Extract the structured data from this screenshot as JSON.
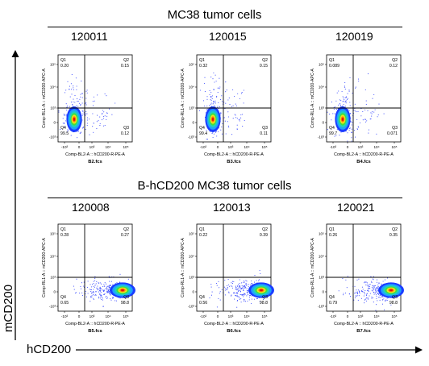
{
  "top_group": {
    "title": "MC38 tumor cells",
    "ids": [
      "120011",
      "120015",
      "120019"
    ]
  },
  "bottom_group": {
    "title": "B-hCD200 MC38 tumor cells",
    "ids": [
      "120008",
      "120013",
      "120021"
    ]
  },
  "x_axis_label": "hCD200",
  "y_axis_label": "mCD200",
  "chart_data": [
    {
      "type": "scatter",
      "title": "120011",
      "file": "B2.fcs",
      "xlabel": "Comp-BL2-A :: hCD200-R-PE-A",
      "ylabel": "Comp-RL1-A :: mCD200-APC-A",
      "xticks": [
        "-10³",
        "0",
        "10³",
        "10⁴",
        "10⁵"
      ],
      "yticks": [
        "-10³",
        "0",
        "10³",
        "10⁴",
        "10⁵"
      ],
      "quadrants": [
        {
          "name": "Q1",
          "percent": "0.20"
        },
        {
          "name": "Q2",
          "percent": "0.15"
        },
        {
          "name": "Q3",
          "percent": "0.12"
        },
        {
          "name": "Q4",
          "percent": "99.5"
        }
      ],
      "population": "Q4"
    },
    {
      "type": "scatter",
      "title": "120015",
      "file": "B3.fcs",
      "xlabel": "Comp-BL2-A :: hCD200-R-PE-A",
      "ylabel": "Comp-RL1-A :: mCD200-APC-A",
      "xticks": [
        "-10³",
        "0",
        "10³",
        "10⁴",
        "10⁵"
      ],
      "yticks": [
        "-10³",
        "0",
        "10³",
        "10⁴",
        "10⁵"
      ],
      "quadrants": [
        {
          "name": "Q1",
          "percent": "0.32"
        },
        {
          "name": "Q2",
          "percent": "0.15"
        },
        {
          "name": "Q3",
          "percent": "0.11"
        },
        {
          "name": "Q4",
          "percent": "99.4"
        }
      ],
      "population": "Q4"
    },
    {
      "type": "scatter",
      "title": "120019",
      "file": "B4.fcs",
      "xlabel": "Comp-BL2-A :: hCD200-R-PE-A",
      "ylabel": "Comp-RL1-A :: mCD200-APC-A",
      "xticks": [
        "-10³",
        "0",
        "10³",
        "10⁴",
        "10⁵"
      ],
      "yticks": [
        "-10³",
        "0",
        "10³",
        "10⁴",
        "10⁵"
      ],
      "quadrants": [
        {
          "name": "Q1",
          "percent": "0.089"
        },
        {
          "name": "Q2",
          "percent": "0.12"
        },
        {
          "name": "Q3",
          "percent": "0.071"
        },
        {
          "name": "Q4",
          "percent": "99.7"
        }
      ],
      "population": "Q4"
    },
    {
      "type": "scatter",
      "title": "120008",
      "file": "B5.fcs",
      "xlabel": "Comp-BL2-A :: hCD200-R-PE-A",
      "ylabel": "Comp-RL1-A :: mCD200-APC-A",
      "xticks": [
        "-10³",
        "0",
        "10³",
        "10⁴",
        "10⁵"
      ],
      "yticks": [
        "-10³",
        "0",
        "10³",
        "10⁴",
        "10⁵"
      ],
      "quadrants": [
        {
          "name": "Q1",
          "percent": "0.28"
        },
        {
          "name": "Q2",
          "percent": "0.27"
        },
        {
          "name": "Q3",
          "percent": "98.8"
        },
        {
          "name": "Q4",
          "percent": "0.65"
        }
      ],
      "population": "Q3"
    },
    {
      "type": "scatter",
      "title": "120013",
      "file": "B6.fcs",
      "xlabel": "Comp-BL2-A :: hCD200-R-PE-A",
      "ylabel": "Comp-RL1-A :: mCD200-APC-A",
      "xticks": [
        "-10³",
        "0",
        "10³",
        "10⁴",
        "10⁵"
      ],
      "yticks": [
        "-10³",
        "0",
        "10³",
        "10⁴",
        "10⁵"
      ],
      "quadrants": [
        {
          "name": "Q1",
          "percent": "0.22"
        },
        {
          "name": "Q2",
          "percent": "0.39"
        },
        {
          "name": "Q3",
          "percent": "98.8"
        },
        {
          "name": "Q4",
          "percent": "0.56"
        }
      ],
      "population": "Q3"
    },
    {
      "type": "scatter",
      "title": "120021",
      "file": "B7.fcs",
      "xlabel": "Comp-BL2-A :: hCD200-R-PE-A",
      "ylabel": "Comp-RL1-A :: mCD200-APC-A",
      "xticks": [
        "-10³",
        "0",
        "10³",
        "10⁴",
        "10⁵"
      ],
      "yticks": [
        "-10³",
        "0",
        "10³",
        "10⁴",
        "10⁵"
      ],
      "quadrants": [
        {
          "name": "Q1",
          "percent": "0.26"
        },
        {
          "name": "Q2",
          "percent": "0.35"
        },
        {
          "name": "Q3",
          "percent": "98.8"
        },
        {
          "name": "Q4",
          "percent": "0.79"
        }
      ],
      "population": "Q3"
    }
  ]
}
